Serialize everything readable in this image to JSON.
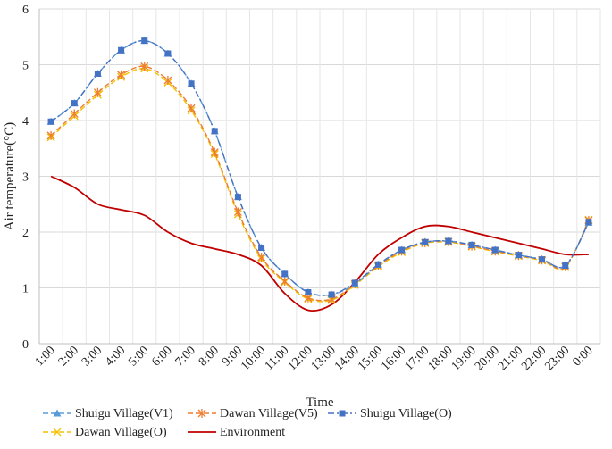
{
  "chart_data": {
    "type": "line",
    "xlabel": "Time",
    "ylabel": "Air temperature(°C)",
    "ylim": [
      0,
      6
    ],
    "yticks": [
      "0",
      "1",
      "2",
      "3",
      "4",
      "5",
      "6"
    ],
    "categories": [
      "1:00",
      "2:00",
      "3:00",
      "4:00",
      "5:00",
      "6:00",
      "7:00",
      "8:00",
      "9:00",
      "10:00",
      "11:00",
      "12:00",
      "13:00",
      "14:00",
      "15:00",
      "16:00",
      "17:00",
      "18:00",
      "19:00",
      "20:00",
      "21:00",
      "22:00",
      "23:00",
      "0:00"
    ],
    "grid": true,
    "legend_position": "bottom",
    "series": [
      {
        "name": "Shuigu Village(V1)",
        "color": "#5B9BD5",
        "dash": "6,3",
        "marker": "triangle",
        "values": [
          3.98,
          4.31,
          4.84,
          5.26,
          5.43,
          5.2,
          4.66,
          3.81,
          2.63,
          1.72,
          1.25,
          0.92,
          0.88,
          1.07,
          1.42,
          1.68,
          1.82,
          1.84,
          1.77,
          1.68,
          1.59,
          1.51,
          1.4,
          2.17
        ]
      },
      {
        "name": "Dawan Village(V5)",
        "color": "#ED7D31",
        "dash": "6,3",
        "marker": "star",
        "values": [
          3.73,
          4.12,
          4.5,
          4.82,
          4.97,
          4.72,
          4.22,
          3.43,
          2.36,
          1.55,
          1.12,
          0.82,
          0.8,
          1.07,
          1.4,
          1.66,
          1.81,
          1.83,
          1.75,
          1.66,
          1.58,
          1.5,
          1.38,
          2.21
        ]
      },
      {
        "name": "Shuigu Village(O)",
        "color": "#4472C4",
        "dash": "7,3,2,3",
        "marker": "square",
        "values": [
          3.98,
          4.31,
          4.84,
          5.26,
          5.43,
          5.2,
          4.66,
          3.81,
          2.63,
          1.72,
          1.25,
          0.92,
          0.88,
          1.09,
          1.42,
          1.68,
          1.82,
          1.84,
          1.77,
          1.68,
          1.59,
          1.51,
          1.4,
          2.18
        ]
      },
      {
        "name": "Dawan Village(O)",
        "color": "#F2C200",
        "dash": "6,3",
        "marker": "x",
        "values": [
          3.7,
          4.08,
          4.46,
          4.78,
          4.93,
          4.68,
          4.18,
          3.4,
          2.32,
          1.52,
          1.1,
          0.8,
          0.78,
          1.05,
          1.38,
          1.64,
          1.8,
          1.82,
          1.74,
          1.65,
          1.57,
          1.49,
          1.37,
          2.22
        ]
      },
      {
        "name": "Environment",
        "color": "#C00000",
        "dash": "",
        "marker": "none",
        "values": [
          3.0,
          2.8,
          2.5,
          2.4,
          2.3,
          2.0,
          1.8,
          1.7,
          1.6,
          1.4,
          0.9,
          0.6,
          0.7,
          1.1,
          1.6,
          1.9,
          2.1,
          2.1,
          2.0,
          1.9,
          1.8,
          1.7,
          1.6,
          1.6
        ]
      }
    ]
  }
}
